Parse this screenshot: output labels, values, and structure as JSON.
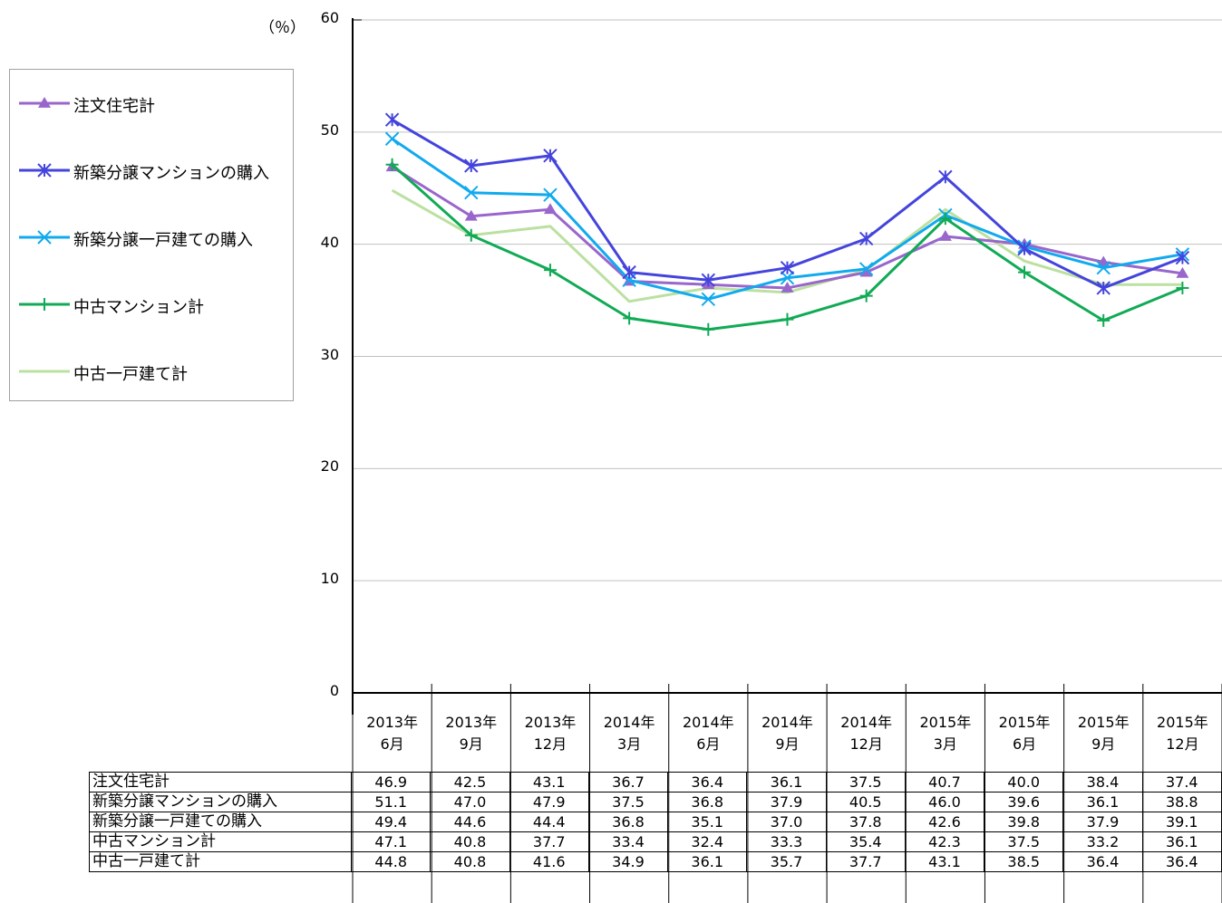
{
  "chart_data": {
    "type": "line",
    "unit_label": "（％）",
    "categories": [
      [
        "2013年",
        "6月"
      ],
      [
        "2013年",
        "9月"
      ],
      [
        "2013年",
        "12月"
      ],
      [
        "2014年",
        "3月"
      ],
      [
        "2014年",
        "6月"
      ],
      [
        "2014年",
        "9月"
      ],
      [
        "2014年",
        "12月"
      ],
      [
        "2015年",
        "3月"
      ],
      [
        "2015年",
        "6月"
      ],
      [
        "2015年",
        "9月"
      ],
      [
        "2015年",
        "12月"
      ]
    ],
    "ylim": [
      0,
      60
    ],
    "yticks": [
      "0",
      "10",
      "20",
      "30",
      "40",
      "50",
      "60"
    ],
    "grid": true,
    "legend": "left",
    "series": [
      {
        "name": "注文住宅計",
        "color": "#9966cc",
        "marker": "triangle",
        "values": [
          46.9,
          42.5,
          43.1,
          36.7,
          36.4,
          36.1,
          37.5,
          40.7,
          40.0,
          38.4,
          37.4
        ],
        "labels": [
          "46.9",
          "42.5",
          "43.1",
          "36.7",
          "36.4",
          "36.1",
          "37.5",
          "40.7",
          "40.0",
          "38.4",
          "37.4"
        ]
      },
      {
        "name": "新築分譲マンションの購入",
        "color": "#4444dd",
        "marker": "star",
        "values": [
          51.1,
          47.0,
          47.9,
          37.5,
          36.8,
          37.9,
          40.5,
          46.0,
          39.6,
          36.1,
          38.8
        ],
        "labels": [
          "51.1",
          "47.0",
          "47.9",
          "37.5",
          "36.8",
          "37.9",
          "40.5",
          "46.0",
          "39.6",
          "36.1",
          "38.8"
        ]
      },
      {
        "name": "新築分譲一戸建ての購入",
        "color": "#11aaee",
        "marker": "x",
        "values": [
          49.4,
          44.6,
          44.4,
          36.8,
          35.1,
          37.0,
          37.8,
          42.6,
          39.8,
          37.9,
          39.1
        ],
        "labels": [
          "49.4",
          "44.6",
          "44.4",
          "36.8",
          "35.1",
          "37.0",
          "37.8",
          "42.6",
          "39.8",
          "37.9",
          "39.1"
        ]
      },
      {
        "name": "中古マンション計",
        "color": "#11aa55",
        "marker": "plus",
        "values": [
          47.1,
          40.8,
          37.7,
          33.4,
          32.4,
          33.3,
          35.4,
          42.3,
          37.5,
          33.2,
          36.1
        ],
        "labels": [
          "47.1",
          "40.8",
          "37.7",
          "33.4",
          "32.4",
          "33.3",
          "35.4",
          "42.3",
          "37.5",
          "33.2",
          "36.1"
        ]
      },
      {
        "name": "中古一戸建て計",
        "color": "#bbe0a0",
        "marker": "none",
        "values": [
          44.8,
          40.8,
          41.6,
          34.9,
          36.1,
          35.7,
          37.7,
          43.1,
          38.5,
          36.4,
          36.4
        ],
        "labels": [
          "44.8",
          "40.8",
          "41.6",
          "34.9",
          "36.1",
          "35.7",
          "37.7",
          "43.1",
          "38.5",
          "36.4",
          "36.4"
        ]
      }
    ]
  }
}
